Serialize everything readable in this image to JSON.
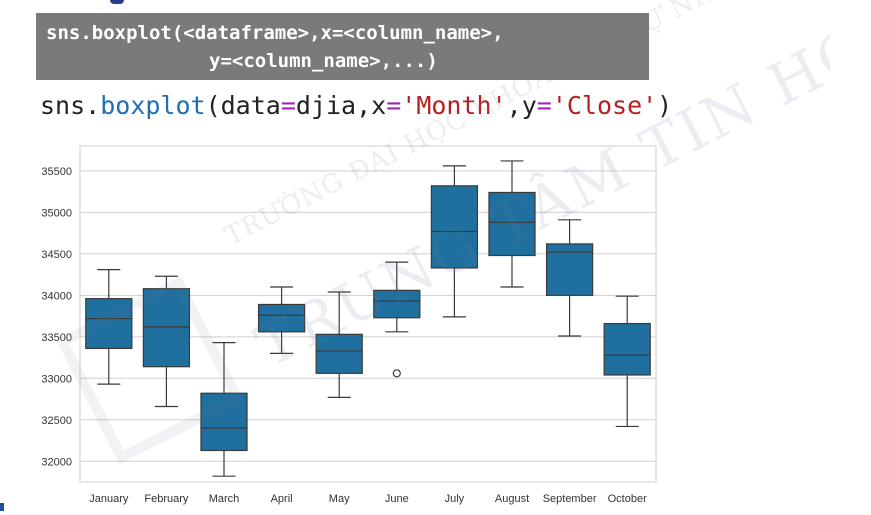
{
  "syntax": {
    "line1": "sns.boxplot(<dataframe>,x=<column_name>,",
    "line2": "y=<column_name>,...)"
  },
  "code": {
    "prefix": "sns.",
    "fn": "boxplot",
    "open": "(data",
    "eq1": "=",
    "arg1": "djia,x",
    "eq2": "=",
    "str1": "'Month'",
    "comma": ",y",
    "eq3": "=",
    "str2": "'Close'",
    "close": ")"
  },
  "watermark": {
    "small": "TRƯỜNG ĐẠI HỌC KHOA HỌC TỰ NHIÊN",
    "big": "TRUNG TÂM TIN HỌC"
  },
  "colors": {
    "box_fill": "#1f6f9f",
    "box_edge": "#3a3a3a",
    "grid": "#cfcfcf",
    "frame": "#cccccc"
  },
  "chart_data": {
    "type": "boxplot",
    "title": "",
    "xlabel": "",
    "ylabel": "",
    "ylim": [
      31750,
      35800
    ],
    "yticks": [
      32000,
      32500,
      33000,
      33500,
      34000,
      34500,
      35000,
      35500
    ],
    "grid": "horizontal",
    "categories": [
      "January",
      "February",
      "March",
      "April",
      "May",
      "June",
      "July",
      "August",
      "September",
      "October"
    ],
    "boxes": [
      {
        "whisker_low": 32930,
        "q1": 33360,
        "median": 33720,
        "q3": 33960,
        "whisker_high": 34310,
        "outliers": []
      },
      {
        "whisker_low": 32660,
        "q1": 33140,
        "median": 33620,
        "q3": 34080,
        "whisker_high": 34230,
        "outliers": []
      },
      {
        "whisker_low": 31820,
        "q1": 32130,
        "median": 32400,
        "q3": 32820,
        "whisker_high": 33430,
        "outliers": []
      },
      {
        "whisker_low": 33300,
        "q1": 33560,
        "median": 33760,
        "q3": 33890,
        "whisker_high": 34100,
        "outliers": []
      },
      {
        "whisker_low": 32770,
        "q1": 33060,
        "median": 33330,
        "q3": 33530,
        "whisker_high": 34040,
        "outliers": []
      },
      {
        "whisker_low": 33560,
        "q1": 33730,
        "median": 33930,
        "q3": 34060,
        "whisker_high": 34400,
        "outliers": [
          33060
        ]
      },
      {
        "whisker_low": 33740,
        "q1": 34330,
        "median": 34770,
        "q3": 35320,
        "whisker_high": 35560,
        "outliers": []
      },
      {
        "whisker_low": 34100,
        "q1": 34480,
        "median": 34880,
        "q3": 35240,
        "whisker_high": 35620,
        "outliers": []
      },
      {
        "whisker_low": 33510,
        "q1": 34000,
        "median": 34520,
        "q3": 34620,
        "whisker_high": 34910,
        "outliers": []
      },
      {
        "whisker_low": 32420,
        "q1": 33040,
        "median": 33280,
        "q3": 33660,
        "whisker_high": 33990,
        "outliers": []
      }
    ]
  }
}
